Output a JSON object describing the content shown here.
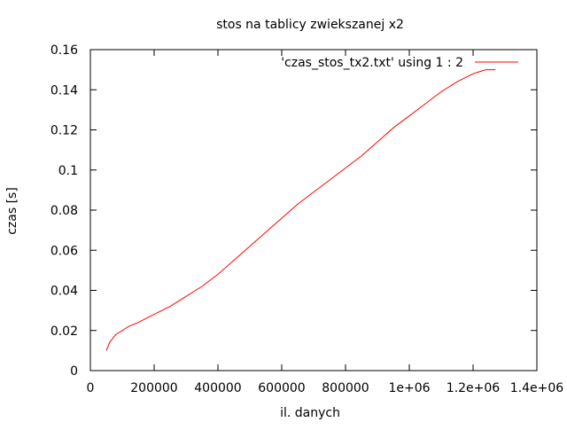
{
  "chart_data": {
    "type": "line",
    "title": "stos na tablicy zwiekszanej x2",
    "xlabel": "il. danych",
    "ylabel": "czas [s]",
    "xlim": [
      0,
      1400000
    ],
    "ylim": [
      0,
      0.16
    ],
    "xticks": [
      0,
      200000,
      400000,
      600000,
      800000,
      1000000,
      1200000,
      1400000
    ],
    "xtick_labels": [
      "0",
      "200000",
      "400000",
      "600000",
      "800000",
      "1e+06",
      "1.2e+06",
      "1.4e+06"
    ],
    "yticks": [
      0,
      0.02,
      0.04,
      0.06,
      0.08,
      0.1,
      0.12,
      0.14,
      0.16
    ],
    "ytick_labels": [
      "0",
      "0.02",
      "0.04",
      "0.06",
      "0.08",
      "0.1",
      "0.12",
      "0.14",
      "0.16"
    ],
    "grid": false,
    "legend_position": "top-right",
    "series": [
      {
        "name": "'czas_stos_tx2.txt' using 1 : 2",
        "color": "#ff0000",
        "x": [
          50000,
          55000,
          60000,
          70000,
          80000,
          90000,
          100000,
          110000,
          120000,
          150000,
          200000,
          250000,
          300000,
          350000,
          400000,
          450000,
          500000,
          550000,
          600000,
          650000,
          700000,
          750000,
          800000,
          850000,
          900000,
          950000,
          1000000,
          1050000,
          1100000,
          1150000,
          1200000,
          1220000,
          1240000,
          1250000,
          1270000
        ],
        "y": [
          0.01,
          0.012,
          0.014,
          0.016,
          0.018,
          0.019,
          0.02,
          0.021,
          0.022,
          0.024,
          0.028,
          0.032,
          0.037,
          0.042,
          0.048,
          0.055,
          0.062,
          0.069,
          0.076,
          0.083,
          0.089,
          0.095,
          0.101,
          0.107,
          0.114,
          0.121,
          0.127,
          0.133,
          0.139,
          0.144,
          0.148,
          0.149,
          0.15,
          0.15,
          0.15
        ]
      }
    ]
  }
}
